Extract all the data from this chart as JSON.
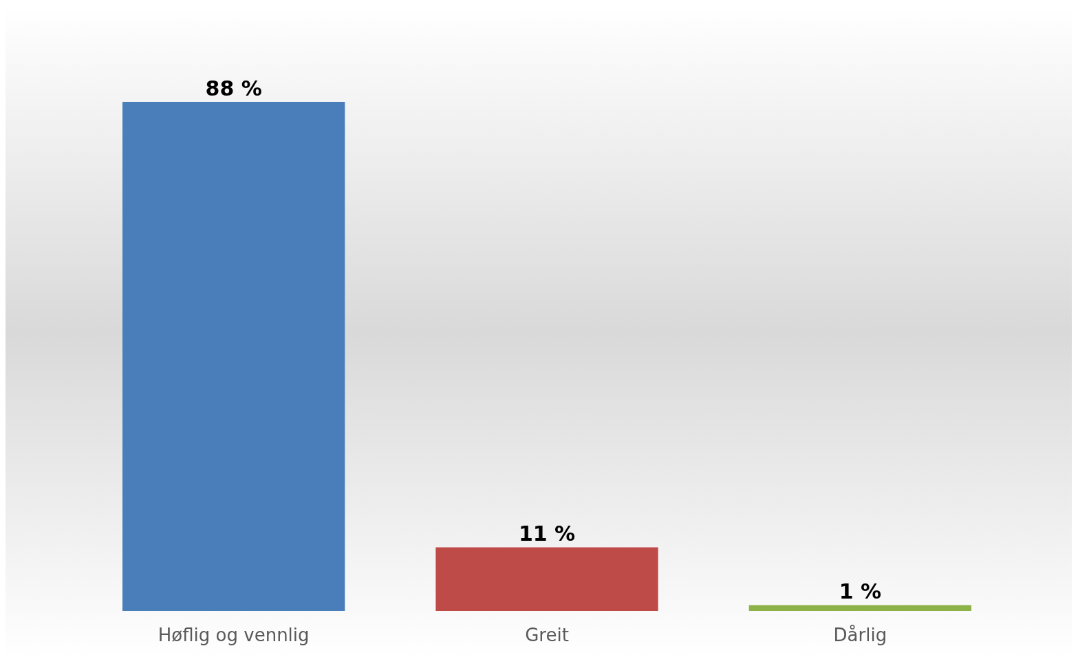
{
  "chart_data": {
    "type": "bar",
    "categories": [
      "Høflig og vennlig",
      "Greit",
      "Dårlig"
    ],
    "values": [
      88,
      11,
      1
    ],
    "colors": [
      "#4a7ebb",
      "#be4b48",
      "#8db248"
    ],
    "value_labels": [
      "88 %",
      "11 %",
      "1 %"
    ]
  }
}
